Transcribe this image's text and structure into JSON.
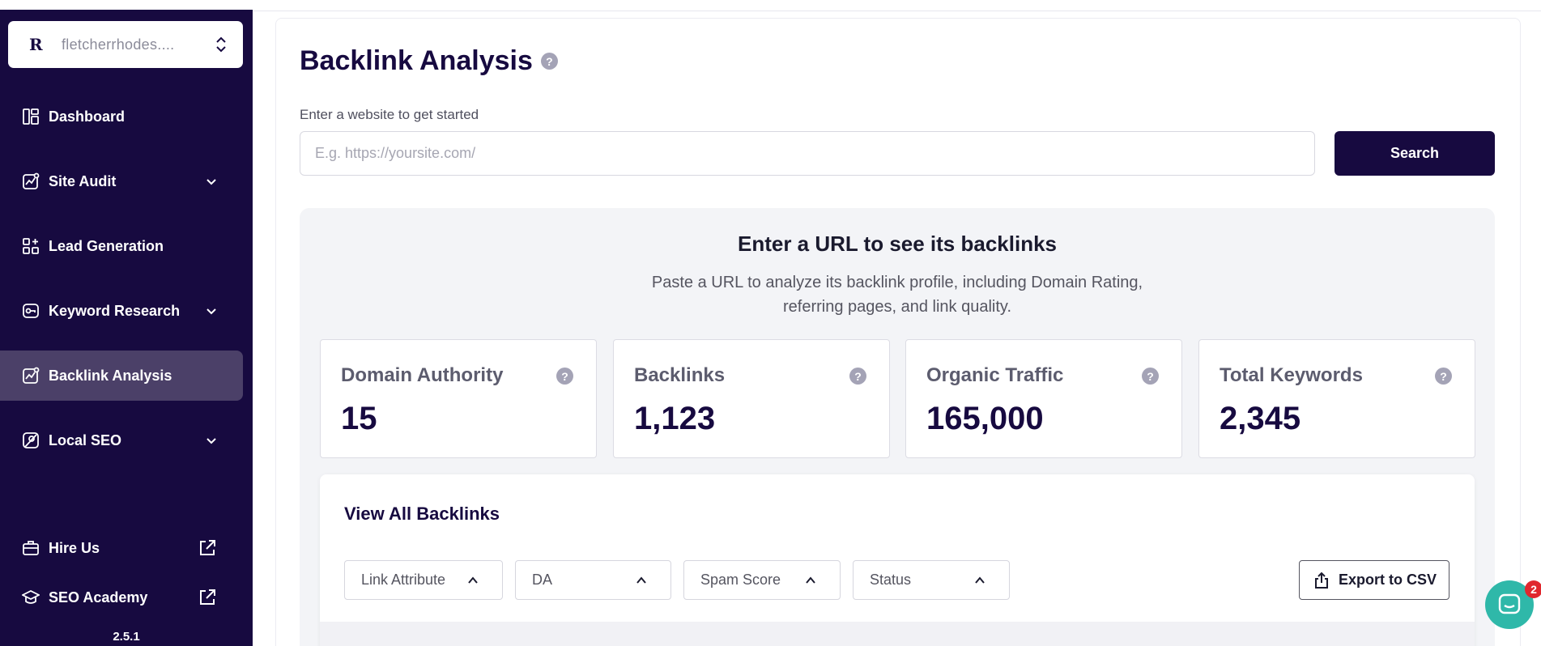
{
  "sidebar": {
    "workspace": {
      "logo": "R",
      "name": "fletcherrhodes...."
    },
    "items": [
      {
        "label": "Dashboard"
      },
      {
        "label": "Site Audit"
      },
      {
        "label": "Lead Generation"
      },
      {
        "label": "Keyword Research"
      },
      {
        "label": "Backlink Analysis"
      },
      {
        "label": "Local SEO"
      }
    ],
    "footer_items": [
      {
        "label": "Hire Us"
      },
      {
        "label": "SEO Academy"
      }
    ],
    "version": "2.5.1"
  },
  "main": {
    "title": "Backlink Analysis",
    "help_symbol": "?",
    "input_label": "Enter a website to get started",
    "input_placeholder": "E.g. https://yoursite.com/",
    "input_value": "",
    "search_label": "Search",
    "empty_title": "Enter a URL to see its backlinks",
    "empty_description": "Paste a URL to analyze its backlink profile, including Domain Rating, referring pages, and link quality.",
    "stats": [
      {
        "label": "Domain Authority",
        "value": "15"
      },
      {
        "label": "Backlinks",
        "value": "1,123"
      },
      {
        "label": "Organic Traffic",
        "value": "165,000"
      },
      {
        "label": "Total Keywords",
        "value": "2,345"
      }
    ],
    "table_title": "View All Backlinks",
    "filters": [
      {
        "label": "Link Attribute"
      },
      {
        "label": "DA"
      },
      {
        "label": "Spam Score"
      },
      {
        "label": "Status"
      }
    ],
    "export_label": "Export to CSV"
  },
  "chat": {
    "badge_count": "2"
  },
  "colors": {
    "sidebar_bg": "#170a40",
    "sidebar_active": "#4b4068",
    "primary": "#170a40",
    "chat": "#2fb8a9",
    "badge": "#e0282e"
  }
}
